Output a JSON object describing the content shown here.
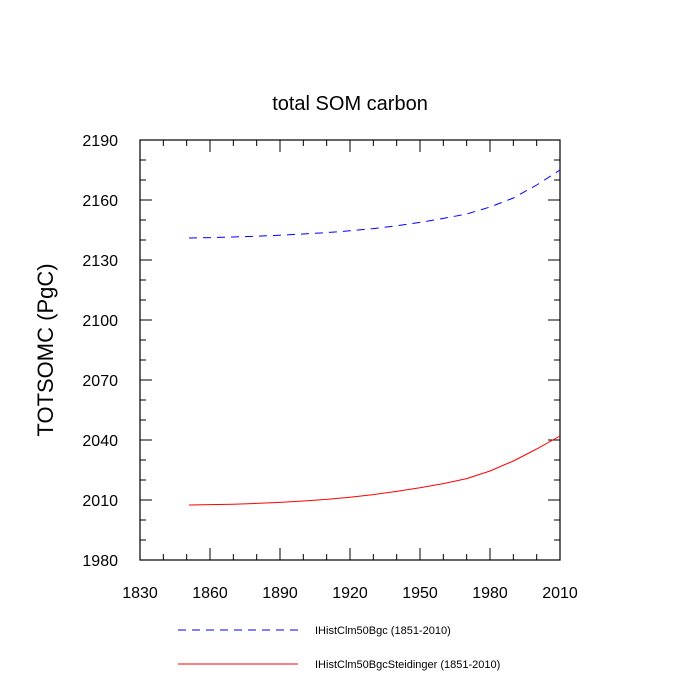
{
  "chart_data": {
    "type": "line",
    "title": "total SOM carbon",
    "xlabel": "",
    "ylabel": "TOTSOMC  (PgC)",
    "xlim": [
      1830,
      2010
    ],
    "ylim": [
      1980,
      2190
    ],
    "xticks": [
      1830,
      1860,
      1890,
      1920,
      1950,
      1980,
      2010
    ],
    "yticks": [
      1980,
      2010,
      2040,
      2070,
      2100,
      2130,
      2160,
      2190
    ],
    "xtick_labels": [
      "1830",
      "1860",
      "1890",
      "1920",
      "1950",
      "1980",
      "2010"
    ],
    "ytick_labels": [
      "1980",
      "2010",
      "2040",
      "2070",
      "2100",
      "2130",
      "2160",
      "2190"
    ],
    "grid": false,
    "legend_position": "bottom",
    "series": [
      {
        "name": "IHistClm50Bgc (1851-2010)",
        "color": "#0000ff",
        "style": "dashed",
        "x": [
          1851,
          1860,
          1870,
          1880,
          1890,
          1900,
          1910,
          1920,
          1930,
          1940,
          1950,
          1960,
          1970,
          1980,
          1990,
          2000,
          2010
        ],
        "values": [
          2141,
          2141.2,
          2141.5,
          2141.9,
          2142.4,
          2143,
          2143.7,
          2144.6,
          2145.7,
          2147.1,
          2148.8,
          2150.8,
          2153,
          2156.5,
          2161,
          2167.5,
          2175
        ]
      },
      {
        "name": "IHistClm50BgcSteidinger (1851-2010)",
        "color": "#ff0000",
        "style": "solid",
        "x": [
          1851,
          1860,
          1870,
          1880,
          1890,
          1900,
          1910,
          1920,
          1930,
          1940,
          1950,
          1960,
          1970,
          1980,
          1990,
          2000,
          2010
        ],
        "values": [
          2007.5,
          2007.7,
          2007.9,
          2008.3,
          2008.8,
          2009.5,
          2010.3,
          2011.4,
          2012.7,
          2014.3,
          2016.1,
          2018.2,
          2020.7,
          2024.5,
          2029.5,
          2035.5,
          2042
        ]
      }
    ]
  }
}
